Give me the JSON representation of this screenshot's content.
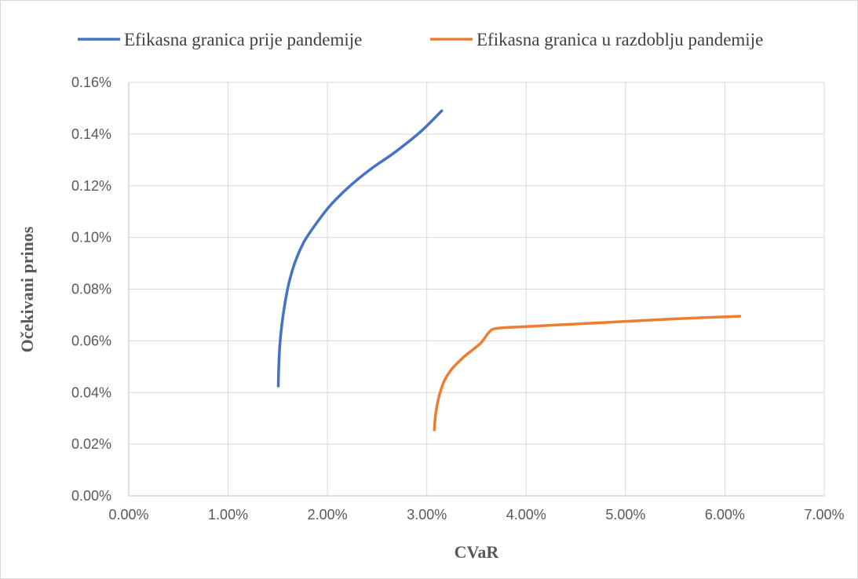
{
  "chart_data": {
    "type": "line",
    "title": "",
    "xlabel": "CVaR",
    "ylabel": "Očekivani prinos",
    "xlim": [
      0,
      0.07
    ],
    "ylim": [
      0,
      0.0016
    ],
    "grid": true,
    "legend_position": "top",
    "x_ticks": [
      "0.00%",
      "1.00%",
      "2.00%",
      "3.00%",
      "4.00%",
      "5.00%",
      "6.00%",
      "7.00%"
    ],
    "y_ticks": [
      "0.00%",
      "0.02%",
      "0.04%",
      "0.06%",
      "0.08%",
      "0.10%",
      "0.12%",
      "0.14%",
      "0.16%"
    ],
    "series": [
      {
        "name": "Efikasna granica prije pandemije",
        "color": "#4472C4",
        "points": [
          [
            0.01505,
            0.000425
          ],
          [
            0.0151,
            0.0005
          ],
          [
            0.0152,
            0.00058
          ],
          [
            0.0154,
            0.00066
          ],
          [
            0.0157,
            0.00074
          ],
          [
            0.0161,
            0.00082
          ],
          [
            0.0167,
            0.0009
          ],
          [
            0.0176,
            0.00098
          ],
          [
            0.0188,
            0.00105
          ],
          [
            0.0202,
            0.00112
          ],
          [
            0.022,
            0.00119
          ],
          [
            0.0242,
            0.00126
          ],
          [
            0.0268,
            0.00133
          ],
          [
            0.0294,
            0.00141
          ],
          [
            0.0315,
            0.00149
          ]
        ]
      },
      {
        "name": "Efikasna granica u razdoblju pandemije",
        "color": "#ED7D31",
        "points": [
          [
            0.03075,
            0.000255
          ],
          [
            0.0309,
            0.00032
          ],
          [
            0.0312,
            0.00038
          ],
          [
            0.0317,
            0.00044
          ],
          [
            0.0325,
            0.00049
          ],
          [
            0.0338,
            0.00054
          ],
          [
            0.0354,
            0.00059
          ],
          [
            0.0362,
            0.00063
          ],
          [
            0.037,
            0.000648
          ],
          [
            0.04,
            0.000655
          ],
          [
            0.045,
            0.000665
          ],
          [
            0.05,
            0.000675
          ],
          [
            0.055,
            0.000685
          ],
          [
            0.0615,
            0.000695
          ]
        ]
      }
    ]
  }
}
